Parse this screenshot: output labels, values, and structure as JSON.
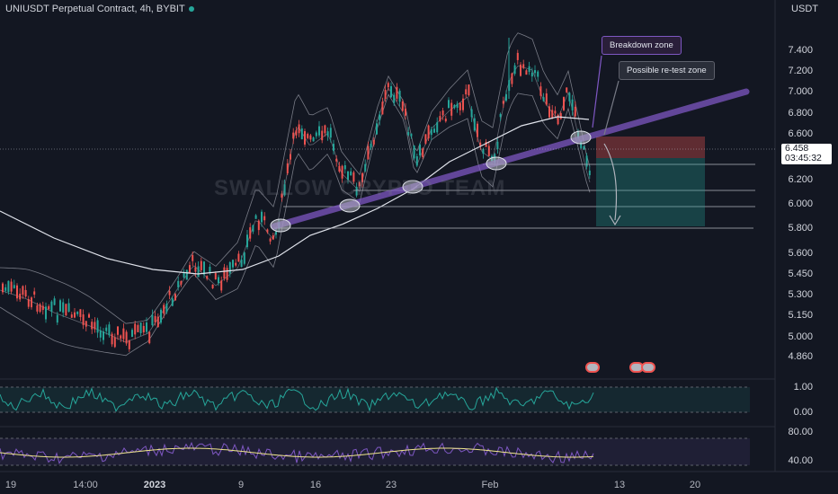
{
  "header": {
    "title": "UNIUSDT Perpetual Contract, 4h, BYBIT",
    "currency": "USDT"
  },
  "watermark": "SWALLOW CRYPTO TEAM",
  "annotations": {
    "breakdown": "Breakdown zone",
    "retest": "Possible re-test zone"
  },
  "price_axis": [
    "7.400",
    "7.200",
    "7.000",
    "6.800",
    "6.600",
    "6.200",
    "6.000",
    "5.800",
    "5.600",
    "5.450",
    "5.300",
    "5.150",
    "5.000",
    "4.860"
  ],
  "indicator1_axis": [
    "1.00",
    "0.00"
  ],
  "indicator2_axis": [
    "80.00",
    "40.00"
  ],
  "last_price": {
    "value": "6.458",
    "countdown": "03:45:32"
  },
  "time_axis": [
    "19",
    "14:00",
    "2023",
    "9",
    "16",
    "23",
    "Feb",
    "13",
    "20"
  ],
  "colors": {
    "background": "#131722",
    "up": "#26a69a",
    "down": "#ef5350",
    "trendline": "#7e57c2",
    "bands": "#787b86",
    "ma": "#e0e3eb"
  },
  "events": {
    "flags": 3
  }
}
